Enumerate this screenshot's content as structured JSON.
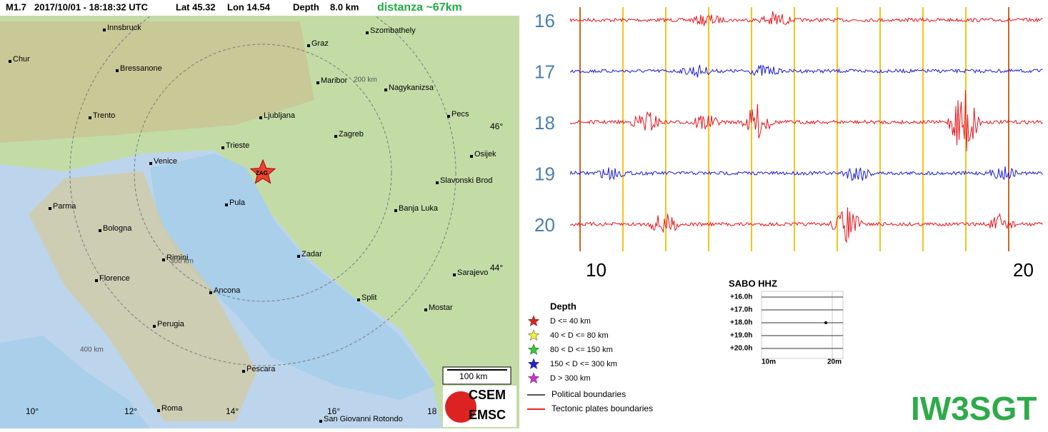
{
  "header": {
    "magnitude": "M1.7",
    "datetime": "2017/10/01 - 18:18:32 UTC",
    "lat": "Lat 45.32",
    "lon": "Lon 14.54",
    "depth_label": "Depth",
    "depth": "8.0 km",
    "distance": "distanza ~67km"
  },
  "map": {
    "cities": [
      "Innsbruck",
      "Chur",
      "Bressanone",
      "Graz",
      "Szombathely",
      "Maribor",
      "Nagykanizsa",
      "Trento",
      "Ljubljana",
      "Pecs",
      "Trieste",
      "Zagreb",
      "Osijek",
      "Venice",
      "Slavonski Brod",
      "Parma",
      "Pula",
      "Banja Luka",
      "Bologna",
      "Zadar",
      "Rimini",
      "Florence",
      "Ancona",
      "Sarajevo",
      "Split",
      "Mostar",
      "Perugia",
      "Pescara",
      "Roma",
      "San Giovanni Rotondo"
    ],
    "station": "ZAG",
    "rings": [
      "200 km",
      "300 km",
      "400 km"
    ],
    "lat_labels": [
      "46°",
      "44°"
    ],
    "lon_labels": [
      "10°",
      "12°",
      "14°",
      "16°",
      "18"
    ],
    "scale": "100 km",
    "logo": [
      "CSEM",
      "EMSC"
    ]
  },
  "legend": {
    "title": "Depth",
    "items": [
      "D <= 40 km",
      "40 < D <= 80 km",
      "80 < D <= 150 km",
      "150 < D <= 300 km",
      "D > 300 km"
    ],
    "lines": [
      "Political boundaries",
      "Tectonic plates boundaries"
    ]
  },
  "seismogram": {
    "rows": [
      "16",
      "17",
      "18",
      "19",
      "20"
    ],
    "x_labels": [
      "10",
      "20"
    ]
  },
  "helicorder": {
    "title": "SABO HHZ",
    "rows": [
      "+16.0h",
      "+17.0h",
      "+18.0h",
      "+19.0h",
      "+20.0h"
    ],
    "x_labels": [
      "10m",
      "20m"
    ]
  },
  "callsign": "IW3SGT"
}
